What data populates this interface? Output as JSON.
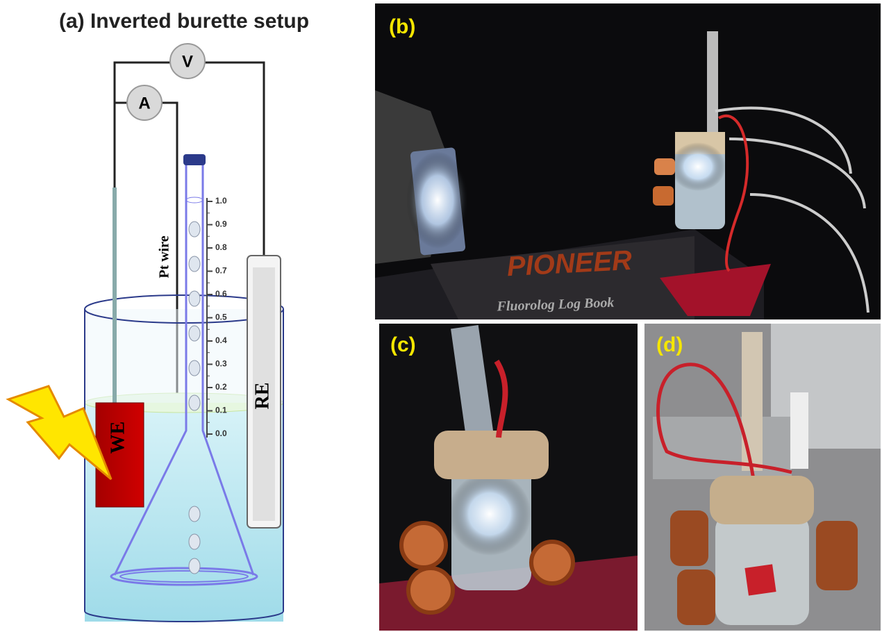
{
  "panel_a": {
    "title": "(a) Inverted burette setup",
    "voltmeter": "V",
    "ammeter": "A",
    "working_electrode": "WE",
    "reference_electrode": "RE",
    "counter_electrode": "Pt wire",
    "scale": [
      "1.0",
      "0.9",
      "0.8",
      "0.7",
      "0.6",
      "0.5",
      "0.4",
      "0.3",
      "0.2",
      "0.1",
      "0.0"
    ]
  },
  "panel_b": {
    "label": "(b)",
    "sign": "PIONEER",
    "book": "Fluorolog Log Book"
  },
  "panel_c": {
    "label": "(c)"
  },
  "panel_d": {
    "label": "(d)"
  }
}
